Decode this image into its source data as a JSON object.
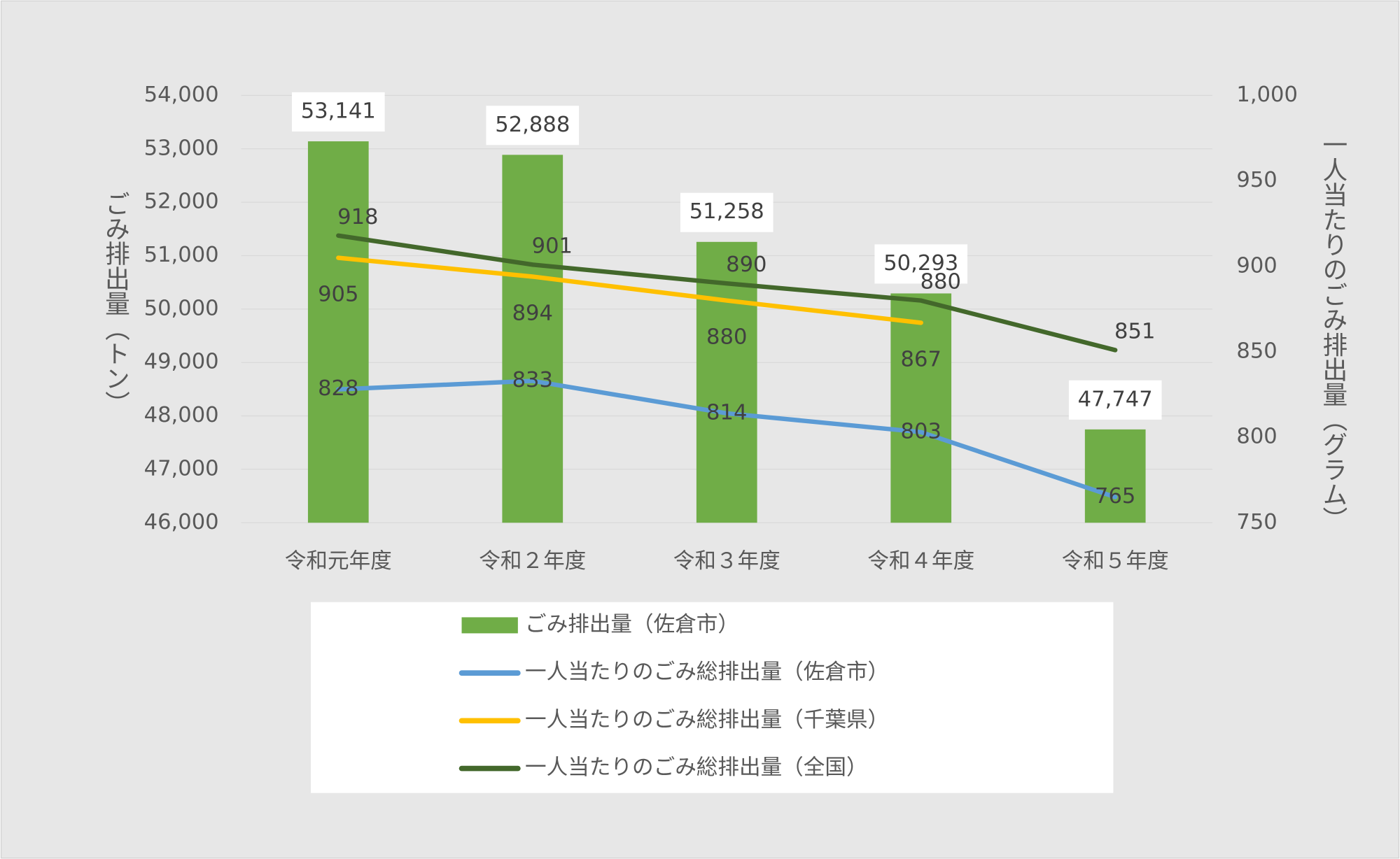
{
  "chart_data": {
    "type": "bar",
    "categories": [
      "令和元年度",
      "令和２年度",
      "令和３年度",
      "令和４年度",
      "令和５年度"
    ],
    "y_label": "ごみ排出量（トン）",
    "y2_label": "一人当たりのごみ排出量（グラム）",
    "series": [
      {
        "name": "ごみ排出量（佐倉市）",
        "type": "bar",
        "color": "#70ad47",
        "values": [
          53141,
          52888,
          51258,
          50293,
          47747
        ],
        "value_labels": [
          "53,141",
          "52,888",
          "51,258",
          "50,293",
          "47,747"
        ]
      },
      {
        "name": "一人当たりのごみ総排出量（佐倉市）",
        "type": "line",
        "axis": "y2",
        "color": "#5b9bd5",
        "values": [
          828,
          833,
          814,
          803,
          765
        ]
      },
      {
        "name": "一人当たりのごみ総排出量（千葉県）",
        "type": "line",
        "axis": "y2",
        "color": "#ffc000",
        "values": [
          905,
          894,
          880,
          867,
          null
        ]
      },
      {
        "name": "一人当たりのごみ総排出量（全国）",
        "type": "line",
        "axis": "y2",
        "color": "#43682b",
        "values": [
          918,
          901,
          890,
          880,
          851
        ]
      }
    ],
    "ylim": [
      46000,
      54000
    ],
    "yticks": [
      {
        "value": 46000,
        "label": "46,000"
      },
      {
        "value": 47000,
        "label": "47,000"
      },
      {
        "value": 48000,
        "label": "48,000"
      },
      {
        "value": 49000,
        "label": "49,000"
      },
      {
        "value": 50000,
        "label": "50,000"
      },
      {
        "value": 51000,
        "label": "51,000"
      },
      {
        "value": 52000,
        "label": "52,000"
      },
      {
        "value": 53000,
        "label": "53,000"
      },
      {
        "value": 54000,
        "label": "54,000"
      }
    ],
    "y2lim": [
      750,
      1000
    ],
    "y2ticks": [
      750,
      800,
      850,
      900,
      950,
      {
        "value": 1000,
        "label": "1,000"
      }
    ],
    "grid": true,
    "legend": "bottom"
  }
}
